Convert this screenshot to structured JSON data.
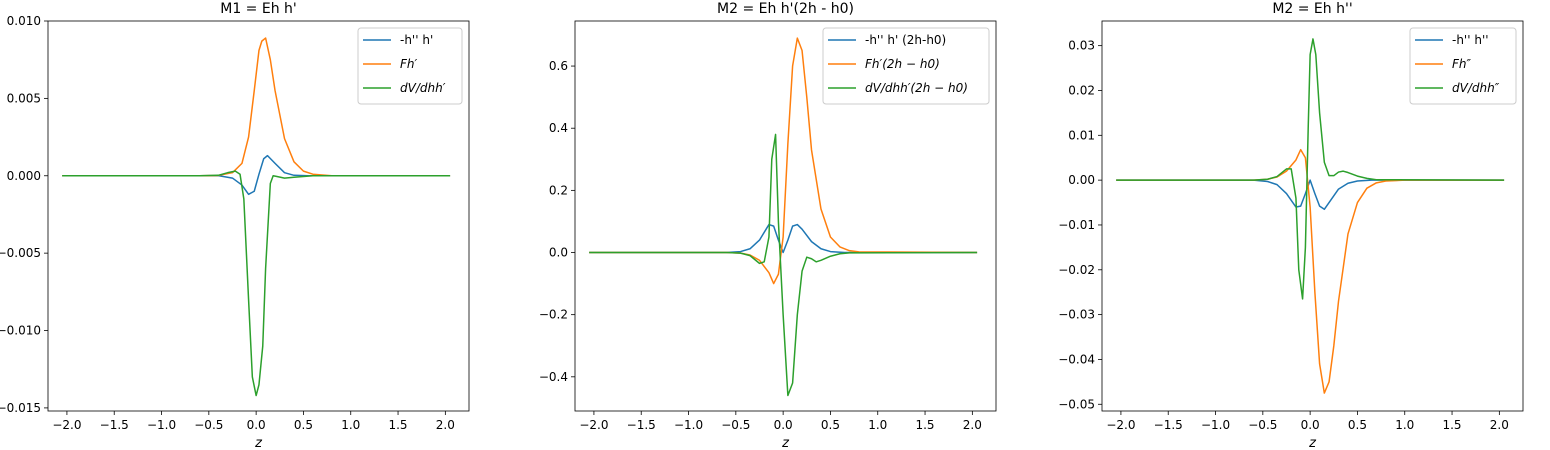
{
  "colors": {
    "blue": "#1f77b4",
    "orange": "#ff7f0e",
    "green": "#2ca02c"
  },
  "chart_data": [
    {
      "type": "line",
      "title": "M1 = Eh h'",
      "xlabel": "z",
      "ylabel": "",
      "xlim": [
        -2.2,
        2.25
      ],
      "ylim": [
        -0.0152,
        0.01
      ],
      "xticks": [
        -2.0,
        -1.5,
        -1.0,
        -0.5,
        0.0,
        0.5,
        1.0,
        1.5,
        2.0
      ],
      "xtick_labels": [
        "−2.0",
        "−1.5",
        "−1.0",
        "−0.5",
        "0.0",
        "0.5",
        "1.0",
        "1.5",
        "2.0"
      ],
      "yticks": [
        -0.015,
        -0.01,
        -0.005,
        0.0,
        0.005,
        0.01
      ],
      "ytick_labels": [
        "−0.015",
        "−0.010",
        "−0.005",
        "0.000",
        "0.005",
        "0.010"
      ],
      "legend_position": "top-right",
      "grid": false,
      "series": [
        {
          "name": "-h'' h'",
          "color": "#1f77b4",
          "x": [
            -2.05,
            -0.6,
            -0.4,
            -0.25,
            -0.15,
            -0.08,
            -0.02,
            0.03,
            0.08,
            0.12,
            0.2,
            0.3,
            0.4,
            0.55,
            0.8,
            2.05
          ],
          "y": [
            0,
            0,
            1e-05,
            -0.00015,
            -0.0006,
            -0.0012,
            -0.001,
            0.0001,
            0.0011,
            0.0013,
            0.0008,
            0.0002,
            3e-05,
            0,
            0,
            0
          ]
        },
        {
          "name": "Fh′",
          "color": "#ff7f0e",
          "x": [
            -2.05,
            -0.6,
            -0.4,
            -0.25,
            -0.15,
            -0.08,
            -0.02,
            0.03,
            0.06,
            0.1,
            0.15,
            0.2,
            0.3,
            0.4,
            0.5,
            0.6,
            0.8,
            2.05
          ],
          "y": [
            0,
            0,
            2e-05,
            0.0002,
            0.0008,
            0.0025,
            0.0055,
            0.0081,
            0.0087,
            0.0089,
            0.0075,
            0.0055,
            0.0024,
            0.0009,
            0.0003,
            0.0001,
            0,
            0
          ]
        },
        {
          "name": "dV/dhh′",
          "color": "#2ca02c",
          "x": [
            -2.05,
            -0.6,
            -0.4,
            -0.3,
            -0.22,
            -0.17,
            -0.13,
            -0.08,
            -0.04,
            0.0,
            0.03,
            0.07,
            0.1,
            0.15,
            0.18,
            0.22,
            0.3,
            0.4,
            0.5,
            0.6,
            0.8,
            2.05
          ],
          "y": [
            0,
            0,
            3e-05,
            0.0002,
            0.0003,
            0.0001,
            -0.0015,
            -0.008,
            -0.013,
            -0.0142,
            -0.0135,
            -0.011,
            -0.006,
            -0.0005,
            0.0,
            -5e-05,
            -0.00015,
            -0.0001,
            -5e-05,
            0,
            0,
            0
          ]
        }
      ]
    },
    {
      "type": "line",
      "title": "M2 = Eh h'(2h - h0)",
      "xlabel": "z",
      "ylabel": "",
      "xlim": [
        -2.2,
        2.25
      ],
      "ylim": [
        -0.51,
        0.745
      ],
      "xticks": [
        -2.0,
        -1.5,
        -1.0,
        -0.5,
        0.0,
        0.5,
        1.0,
        1.5,
        2.0
      ],
      "xtick_labels": [
        "−2.0",
        "−1.5",
        "−1.0",
        "−0.5",
        "0.0",
        "0.5",
        "1.0",
        "1.5",
        "2.0"
      ],
      "yticks": [
        -0.4,
        -0.2,
        0.0,
        0.2,
        0.4,
        0.6
      ],
      "ytick_labels": [
        "−0.4",
        "−0.2",
        "0.0",
        "0.2",
        "0.4",
        "0.6"
      ],
      "legend_position": "top-right",
      "grid": false,
      "series": [
        {
          "name": "-h'' h' (2h-h0)",
          "color": "#1f77b4",
          "x": [
            -2.05,
            -0.6,
            -0.45,
            -0.35,
            -0.25,
            -0.15,
            -0.1,
            -0.05,
            0.0,
            0.05,
            0.1,
            0.15,
            0.2,
            0.3,
            0.4,
            0.5,
            0.65,
            2.05
          ],
          "y": [
            0,
            0,
            0.003,
            0.012,
            0.04,
            0.09,
            0.085,
            0.04,
            0.0,
            0.04,
            0.085,
            0.09,
            0.075,
            0.035,
            0.012,
            0.003,
            0,
            0
          ]
        },
        {
          "name": "Fh′(2h − h0)",
          "color": "#ff7f0e",
          "x": [
            -2.05,
            -0.6,
            -0.45,
            -0.35,
            -0.25,
            -0.15,
            -0.1,
            -0.05,
            0.0,
            0.05,
            0.1,
            0.15,
            0.2,
            0.25,
            0.3,
            0.4,
            0.5,
            0.6,
            0.7,
            0.8,
            2.05
          ],
          "y": [
            0,
            0,
            -0.002,
            -0.008,
            -0.025,
            -0.065,
            -0.1,
            -0.07,
            0.05,
            0.35,
            0.6,
            0.69,
            0.65,
            0.5,
            0.33,
            0.14,
            0.05,
            0.018,
            0.006,
            0.002,
            0
          ]
        },
        {
          "name": "dV/dhh′(2h − h0)",
          "color": "#2ca02c",
          "x": [
            -2.05,
            -0.6,
            -0.45,
            -0.35,
            -0.25,
            -0.2,
            -0.15,
            -0.12,
            -0.08,
            -0.05,
            0.0,
            0.05,
            0.1,
            0.15,
            0.2,
            0.25,
            0.3,
            0.35,
            0.4,
            0.5,
            0.6,
            0.7,
            2.05
          ],
          "y": [
            0,
            0,
            -0.002,
            -0.01,
            -0.035,
            -0.03,
            0.05,
            0.3,
            0.38,
            0.1,
            -0.2,
            -0.46,
            -0.42,
            -0.2,
            -0.06,
            -0.015,
            -0.02,
            -0.03,
            -0.025,
            -0.012,
            -0.004,
            -0.001,
            0
          ]
        }
      ]
    },
    {
      "type": "line",
      "title": "M2 = Eh h''",
      "xlabel": "z",
      "ylabel": "",
      "xlim": [
        -2.2,
        2.25
      ],
      "ylim": [
        -0.0515,
        0.0355
      ],
      "xticks": [
        -2.0,
        -1.5,
        -1.0,
        -0.5,
        0.0,
        0.5,
        1.0,
        1.5,
        2.0
      ],
      "xtick_labels": [
        "−2.0",
        "−1.5",
        "−1.0",
        "−0.5",
        "0.0",
        "0.5",
        "1.0",
        "1.5",
        "2.0"
      ],
      "yticks": [
        -0.05,
        -0.04,
        -0.03,
        -0.02,
        -0.01,
        0.0,
        0.01,
        0.02,
        0.03
      ],
      "ytick_labels": [
        "−0.05",
        "−0.04",
        "−0.03",
        "−0.02",
        "−0.01",
        "0.00",
        "0.01",
        "0.02",
        "0.03"
      ],
      "legend_position": "top-right",
      "grid": false,
      "series": [
        {
          "name": "-h'' h''",
          "color": "#1f77b4",
          "x": [
            -2.05,
            -0.6,
            -0.45,
            -0.35,
            -0.25,
            -0.15,
            -0.1,
            -0.05,
            0.0,
            0.05,
            0.1,
            0.15,
            0.2,
            0.3,
            0.4,
            0.5,
            0.65,
            2.05
          ],
          "y": [
            0,
            0,
            -0.0003,
            -0.001,
            -0.003,
            -0.006,
            -0.0058,
            -0.003,
            0.0,
            -0.003,
            -0.0058,
            -0.0065,
            -0.005,
            -0.002,
            -0.0007,
            -0.0002,
            0,
            0
          ]
        },
        {
          "name": "Fh″",
          "color": "#ff7f0e",
          "x": [
            -2.05,
            -0.6,
            -0.45,
            -0.35,
            -0.25,
            -0.15,
            -0.1,
            -0.05,
            0.0,
            0.05,
            0.1,
            0.15,
            0.2,
            0.25,
            0.3,
            0.4,
            0.5,
            0.6,
            0.7,
            0.8,
            1.0,
            2.05
          ],
          "y": [
            0,
            0,
            0.0002,
            0.0007,
            0.002,
            0.0045,
            0.0068,
            0.005,
            -0.006,
            -0.025,
            -0.041,
            -0.0475,
            -0.045,
            -0.037,
            -0.027,
            -0.012,
            -0.005,
            -0.0018,
            -0.0006,
            -0.0002,
            0,
            0
          ]
        },
        {
          "name": "dV/dhh″",
          "color": "#2ca02c",
          "x": [
            -2.05,
            -0.6,
            -0.45,
            -0.35,
            -0.25,
            -0.2,
            -0.15,
            -0.12,
            -0.08,
            -0.05,
            -0.02,
            0.0,
            0.03,
            0.06,
            0.1,
            0.15,
            0.2,
            0.25,
            0.3,
            0.35,
            0.4,
            0.5,
            0.6,
            0.7,
            2.05
          ],
          "y": [
            0,
            0,
            0.0002,
            0.0008,
            0.0025,
            0.0025,
            -0.004,
            -0.02,
            -0.0265,
            -0.015,
            0.012,
            0.028,
            0.0315,
            0.028,
            0.015,
            0.004,
            0.001,
            0.001,
            0.0018,
            0.002,
            0.0017,
            0.0009,
            0.0004,
            0.0001,
            0
          ]
        }
      ]
    }
  ]
}
